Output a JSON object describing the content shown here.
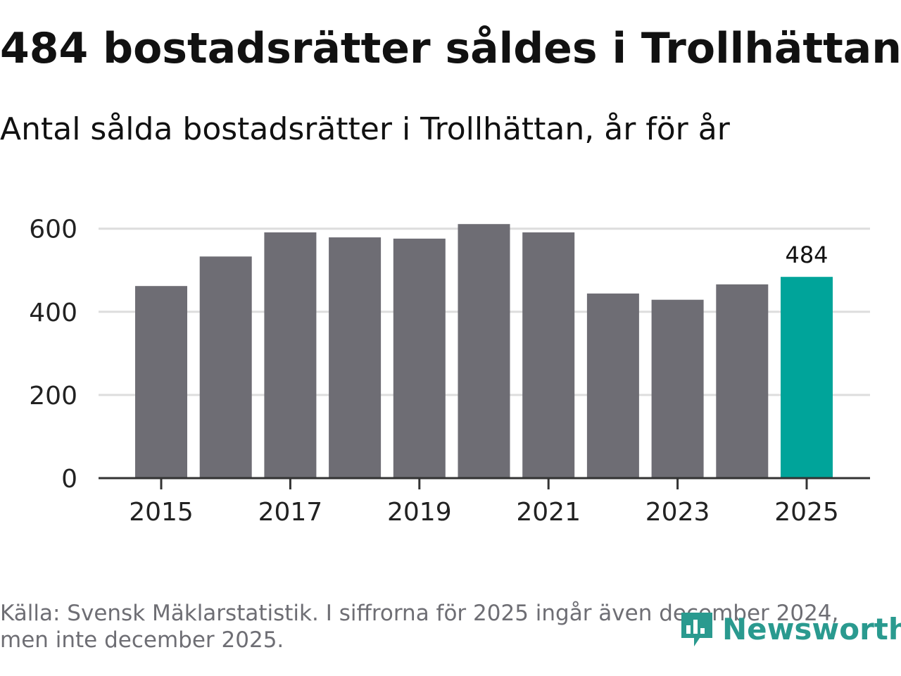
{
  "title": "484 bostadsrätter såldes i Trollhättan",
  "subtitle": "Antal sålda bostadsrätter i Trollhättan, år för år",
  "colors": {
    "bar_default": "#6e6d74",
    "bar_highlight": "#00a49a",
    "grid": "#dddddd",
    "axis": "#333333",
    "footer_text": "#6e6e74",
    "brand": "#2a9a8f"
  },
  "chart_data": {
    "type": "bar",
    "title": "484 bostadsrätter såldes i Trollhättan",
    "subtitle": "Antal sålda bostadsrätter i Trollhättan, år för år",
    "xlabel": "",
    "ylabel": "",
    "categories": [
      "2015",
      "2016",
      "2017",
      "2018",
      "2019",
      "2020",
      "2021",
      "2022",
      "2023",
      "2024",
      "2025"
    ],
    "values": [
      462,
      533,
      591,
      579,
      576,
      611,
      591,
      444,
      429,
      466,
      484
    ],
    "highlight_index": 10,
    "highlight_label": "484",
    "ylim": [
      0,
      640
    ],
    "yticks": [
      0,
      200,
      400,
      600
    ],
    "xtick_labels": [
      "2015",
      "2017",
      "2019",
      "2021",
      "2023",
      "2025"
    ],
    "grid": true
  },
  "footer": {
    "source_line1": "Källa: Svensk Mäklarstatistik. I siffrorna för 2025 ingår även december 2024,",
    "source_line2": "men inte december 2025."
  },
  "brand": {
    "name": "Newsworthy",
    "icon": "newsworthy-logo-icon"
  }
}
